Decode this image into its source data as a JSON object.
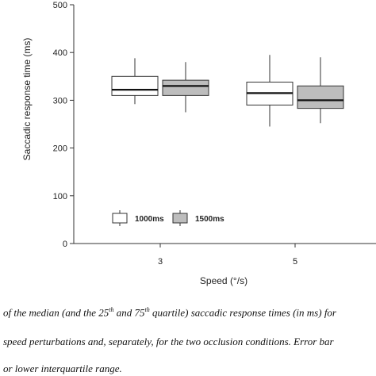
{
  "chart_data": {
    "type": "box",
    "xlabel": "Speed (°/s)",
    "ylabel": "Saccadic response time (ms)",
    "ylim": [
      0,
      500
    ],
    "yticks": [
      0,
      100,
      200,
      300,
      400,
      500
    ],
    "categories": [
      "3",
      "5"
    ],
    "series": [
      {
        "name": "1000ms",
        "color": "#ffffff",
        "boxes": [
          {
            "category": "3",
            "whisker_low": 292,
            "q1": 310,
            "median": 322,
            "q3": 350,
            "whisker_high": 388
          },
          {
            "category": "5",
            "whisker_low": 245,
            "q1": 290,
            "median": 315,
            "q3": 338,
            "whisker_high": 395
          }
        ]
      },
      {
        "name": "1500ms",
        "color": "#bdbdbd",
        "boxes": [
          {
            "category": "3",
            "whisker_low": 275,
            "q1": 310,
            "median": 330,
            "q3": 342,
            "whisker_high": 380
          },
          {
            "category": "5",
            "whisker_low": 252,
            "q1": 283,
            "median": 300,
            "q3": 330,
            "whisker_high": 390
          }
        ]
      }
    ],
    "legend": "bottom-left, inside plot",
    "grid": false
  },
  "caption": {
    "line1_a": "of the median (and the 25",
    "line1_sup1": "th",
    "line1_b": " and 75",
    "line1_sup2": "th",
    "line1_c": " quartile) saccadic response times (in ms) for",
    "line2": "speed perturbations and, separately, for the two occlusion conditions. Error bar",
    "line3": "or lower interquartile range."
  }
}
